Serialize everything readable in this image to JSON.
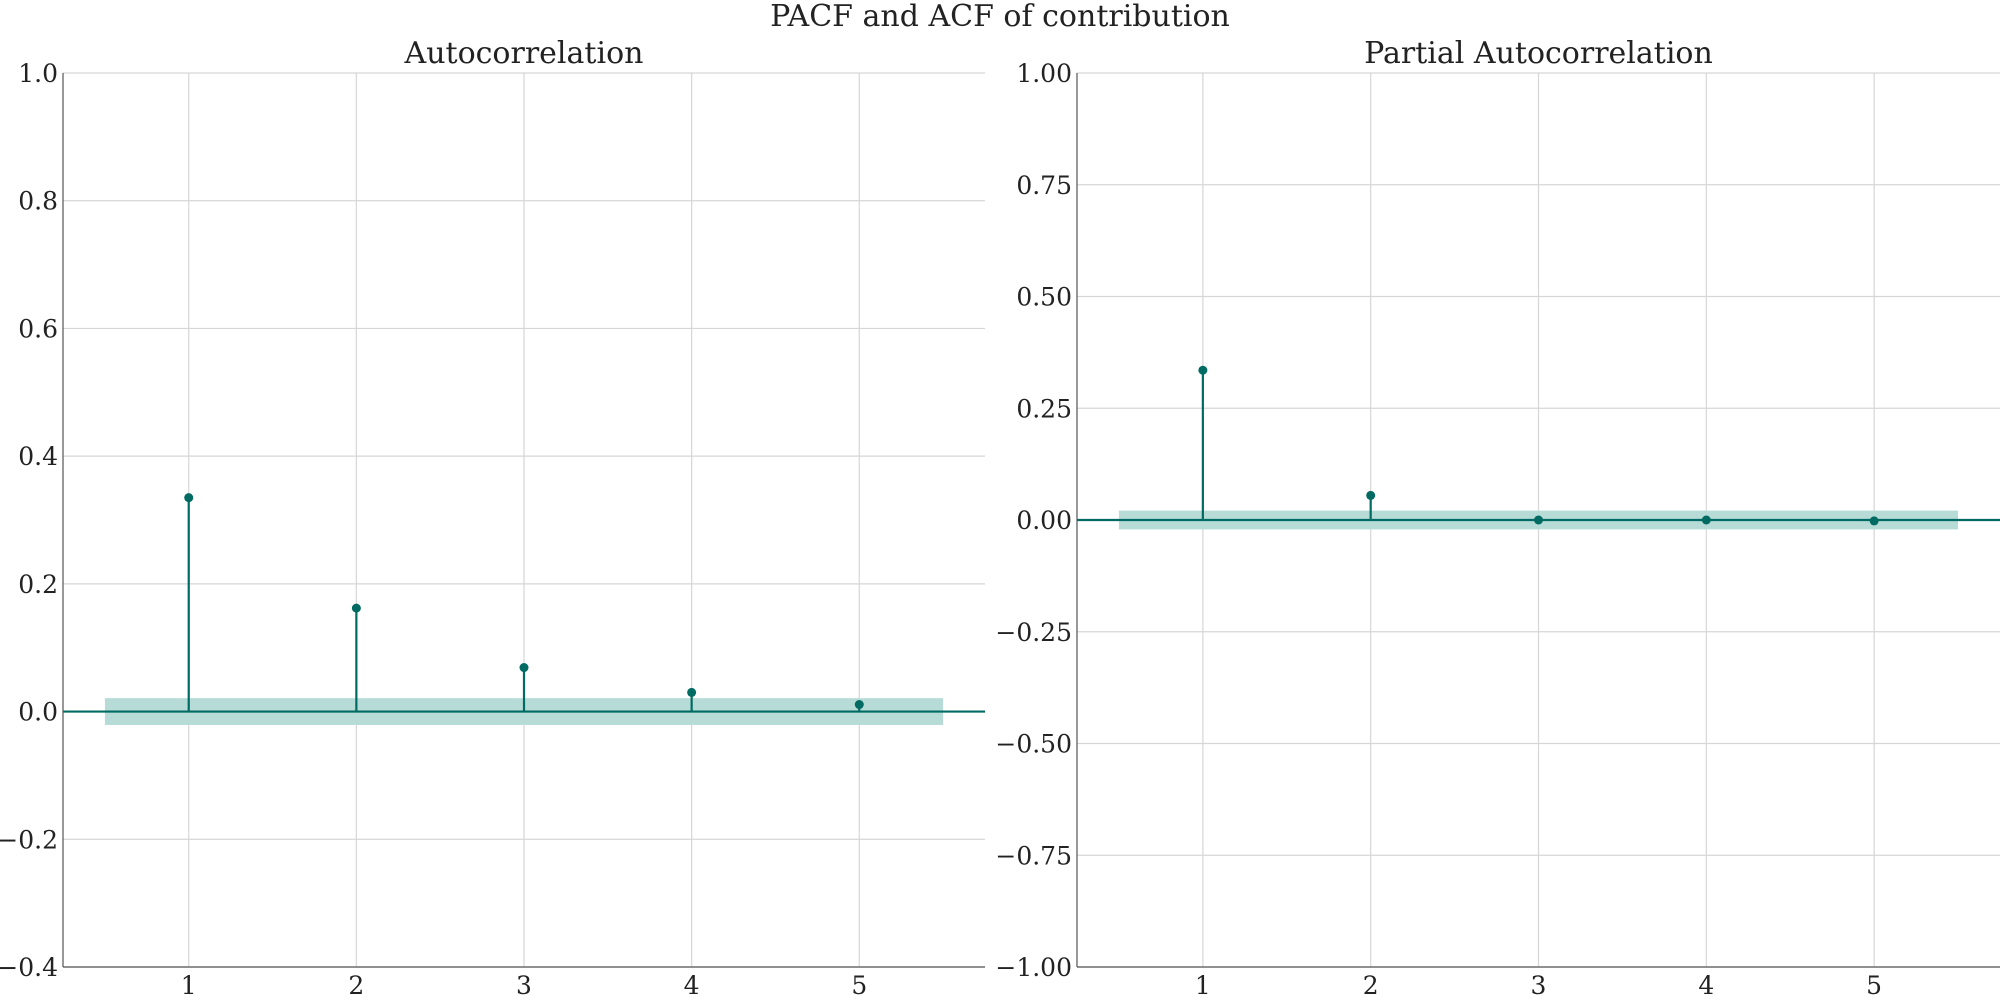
{
  "figure": {
    "suptitle": "PACF and ACF of contribution"
  },
  "colors": {
    "stem": "#006b62",
    "confidence_band": "#b7dbd7",
    "grid": "#d6d6d6",
    "axis": "#555555"
  },
  "chart_data": [
    {
      "type": "stem",
      "title": "Autocorrelation",
      "xlabel": "",
      "ylabel": "",
      "x": [
        1,
        2,
        3,
        4,
        5
      ],
      "values": [
        0.335,
        0.162,
        0.069,
        0.03,
        0.011
      ],
      "confidence_band": {
        "x_range": [
          0.5,
          5.5
        ],
        "lower": -0.021,
        "upper": 0.021
      },
      "xlim": [
        0.25,
        5.75
      ],
      "ylim": [
        -0.4,
        1.0
      ],
      "xticks": [
        1,
        2,
        3,
        4,
        5
      ],
      "xtick_labels": [
        "1",
        "2",
        "3",
        "4",
        "5"
      ],
      "yticks": [
        -0.4,
        -0.2,
        0.0,
        0.2,
        0.4,
        0.6,
        0.8,
        1.0
      ],
      "ytick_labels": [
        "−0.4",
        "−0.2",
        "0.0",
        "0.2",
        "0.4",
        "0.6",
        "0.8",
        "1.0"
      ],
      "grid": true
    },
    {
      "type": "stem",
      "title": "Partial Autocorrelation",
      "xlabel": "",
      "ylabel": "",
      "x": [
        1,
        2,
        3,
        4,
        5
      ],
      "values": [
        0.335,
        0.055,
        0.0,
        0.0,
        -0.002
      ],
      "confidence_band": {
        "x_range": [
          0.5,
          5.5
        ],
        "lower": -0.021,
        "upper": 0.021
      },
      "xlim": [
        0.25,
        5.75
      ],
      "ylim": [
        -1.0,
        1.0
      ],
      "xticks": [
        1,
        2,
        3,
        4,
        5
      ],
      "xtick_labels": [
        "1",
        "2",
        "3",
        "4",
        "5"
      ],
      "yticks": [
        -1.0,
        -0.75,
        -0.5,
        -0.25,
        0.0,
        0.25,
        0.5,
        0.75,
        1.0
      ],
      "ytick_labels": [
        "−1.00",
        "−0.75",
        "−0.50",
        "−0.25",
        "0.00",
        "0.25",
        "0.50",
        "0.75",
        "1.00"
      ],
      "grid": true
    }
  ]
}
